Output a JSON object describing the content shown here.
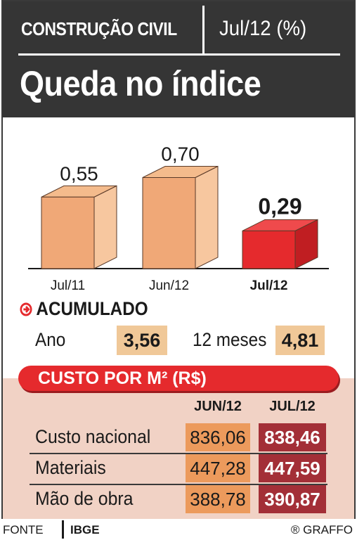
{
  "header": {
    "kicker": "CONSTRUÇÃO CIVIL",
    "period": "Jul/12 (%)",
    "headline": "Queda no índice"
  },
  "chart_data": {
    "type": "bar",
    "categories": [
      "Jul/11",
      "Jun/12",
      "Jul/12"
    ],
    "values": [
      0.55,
      0.7,
      0.29
    ],
    "value_labels": [
      "0,55",
      "0,70",
      "0,29"
    ],
    "highlight_index": 2,
    "colors": {
      "normal": "#f0a877",
      "normal_side": "#f7c79f",
      "normal_top": "#f4bb8c",
      "highlight": "#e52a2d",
      "highlight_side": "#c01e22",
      "highlight_top": "#ef4a4c"
    }
  },
  "acumulado": {
    "title": "ACUMULADO",
    "ano_label": "Ano",
    "ano_value": "3,56",
    "meses_label": "12 meses",
    "meses_value": "4,81"
  },
  "custo": {
    "title": "CUSTO POR M² (R$)",
    "columns": [
      "JUN/12",
      "JUL/12"
    ],
    "rows": [
      {
        "label": "Custo nacional",
        "jun": "836,06",
        "jul": "838,46"
      },
      {
        "label": "Materiais",
        "jun": "447,28",
        "jul": "447,59"
      },
      {
        "label": "Mão de obra",
        "jun": "388,78",
        "jul": "390,87"
      }
    ]
  },
  "footer": {
    "fonte_label": "FONTE",
    "fonte_value": "IBGE",
    "credit": "® GRAFFO"
  }
}
